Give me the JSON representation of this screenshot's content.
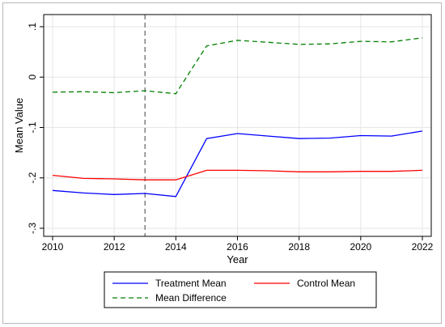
{
  "chart_data": {
    "type": "line",
    "title": "",
    "xlabel": "Year",
    "ylabel": "Mean Value",
    "xlim": [
      2010,
      2022
    ],
    "ylim": [
      -0.3,
      0.1
    ],
    "x_ticks": [
      "2010",
      "2012",
      "2014",
      "2016",
      "2018",
      "2020",
      "2022"
    ],
    "y_ticks": [
      "-.3",
      "-.2",
      "-.1",
      "0",
      ".1"
    ],
    "grid": true,
    "reference_line": {
      "x": 2013,
      "style": "dashed",
      "color": "#808080"
    },
    "legend_position": "bottom",
    "x": [
      2010,
      2011,
      2012,
      2013,
      2014,
      2015,
      2016,
      2017,
      2018,
      2019,
      2020,
      2021,
      2022
    ],
    "series": [
      {
        "name": "Treatment Mean",
        "color": "#0000ff",
        "style": "solid",
        "values": [
          -0.225,
          -0.23,
          -0.233,
          -0.231,
          -0.237,
          -0.122,
          -0.112,
          -0.117,
          -0.122,
          -0.121,
          -0.116,
          -0.117,
          -0.107
        ]
      },
      {
        "name": "Control Mean",
        "color": "#ff0000",
        "style": "solid",
        "values": [
          -0.195,
          -0.201,
          -0.202,
          -0.204,
          -0.204,
          -0.185,
          -0.185,
          -0.186,
          -0.188,
          -0.188,
          -0.187,
          -0.187,
          -0.185
        ]
      },
      {
        "name": "Mean Difference",
        "color": "#008000",
        "style": "dashed",
        "values": [
          -0.03,
          -0.029,
          -0.031,
          -0.027,
          -0.033,
          0.062,
          0.073,
          0.069,
          0.065,
          0.066,
          0.071,
          0.07,
          0.078
        ]
      }
    ]
  }
}
